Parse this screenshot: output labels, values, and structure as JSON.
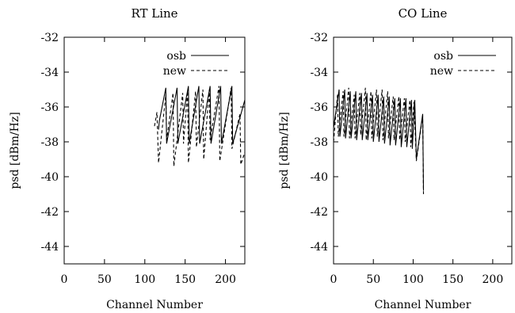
{
  "chart_data": [
    {
      "type": "line",
      "title": "RT Line",
      "xlabel": "Channel Number",
      "ylabel": "psd [dBm/Hz]",
      "xlim": [
        0,
        224
      ],
      "ylim": [
        -45,
        -32
      ],
      "xticks": [
        0,
        50,
        100,
        150,
        200
      ],
      "yticks": [
        -32,
        -34,
        -36,
        -38,
        -40,
        -42,
        -44
      ],
      "grid": false,
      "legend": "top-right",
      "series": [
        {
          "name": "osb",
          "style": "solid",
          "color": "#000000",
          "points": [
            [
              117,
              -37.3
            ],
            [
              118,
              -36.8
            ],
            [
              126,
              -34.9
            ],
            [
              127,
              -38.1
            ],
            [
              140,
              -34.9
            ],
            [
              141,
              -38.1
            ],
            [
              154,
              -34.8
            ],
            [
              155,
              -38.1
            ],
            [
              167,
              -34.8
            ],
            [
              168,
              -38.1
            ],
            [
              181,
              -34.8
            ],
            [
              182,
              -38.1
            ],
            [
              194,
              -34.8
            ],
            [
              195,
              -38.1
            ],
            [
              208,
              -34.8
            ],
            [
              209,
              -38.1
            ],
            [
              224,
              -35.6
            ]
          ]
        },
        {
          "name": "new",
          "style": "dashed",
          "color": "#000000",
          "points": [
            [
              112,
              -37.1
            ],
            [
              115,
              -36.3
            ],
            [
              117,
              -39.2
            ],
            [
              126,
              -35.3
            ],
            [
              127,
              -37.9
            ],
            [
              135,
              -35.2
            ],
            [
              136,
              -39.4
            ],
            [
              147,
              -35.2
            ],
            [
              148,
              -38.1
            ],
            [
              153,
              -35.1
            ],
            [
              154,
              -39.2
            ],
            [
              163,
              -35.1
            ],
            [
              164,
              -38.3
            ],
            [
              172,
              -35.0
            ],
            [
              173,
              -39.0
            ],
            [
              180,
              -35.0
            ],
            [
              181,
              -37.9
            ],
            [
              192,
              -34.8
            ],
            [
              193,
              -39.1
            ],
            [
              207,
              -34.9
            ],
            [
              208,
              -38.4
            ],
            [
              218,
              -36.4
            ],
            [
              219,
              -39.3
            ],
            [
              224,
              -38.6
            ]
          ]
        }
      ]
    },
    {
      "type": "line",
      "title": "CO Line",
      "xlabel": "Channel Number",
      "ylabel": "psd [dBm/Hz]",
      "xlim": [
        0,
        224
      ],
      "ylim": [
        -45,
        -32
      ],
      "xticks": [
        0,
        50,
        100,
        150,
        200
      ],
      "yticks": [
        -32,
        -34,
        -36,
        -38,
        -40,
        -42,
        -44
      ],
      "grid": false,
      "legend": "top-right",
      "series": [
        {
          "name": "osb",
          "style": "solid",
          "color": "#000000",
          "points": [
            [
              0,
              -37.2
            ],
            [
              7,
              -35.0
            ],
            [
              8,
              -37.7
            ],
            [
              14,
              -35.0
            ],
            [
              15,
              -37.8
            ],
            [
              21,
              -35.1
            ],
            [
              22,
              -37.8
            ],
            [
              28,
              -35.1
            ],
            [
              29,
              -37.9
            ],
            [
              35,
              -35.2
            ],
            [
              36,
              -37.9
            ],
            [
              42,
              -35.2
            ],
            [
              43,
              -37.9
            ],
            [
              49,
              -35.3
            ],
            [
              50,
              -38.0
            ],
            [
              56,
              -35.3
            ],
            [
              57,
              -38.0
            ],
            [
              63,
              -35.4
            ],
            [
              64,
              -38.1
            ],
            [
              70,
              -35.4
            ],
            [
              71,
              -38.2
            ],
            [
              77,
              -35.5
            ],
            [
              78,
              -38.2
            ],
            [
              84,
              -35.5
            ],
            [
              85,
              -38.3
            ],
            [
              91,
              -35.5
            ],
            [
              92,
              -38.3
            ],
            [
              98,
              -35.6
            ],
            [
              99,
              -38.4
            ],
            [
              102,
              -35.6
            ],
            [
              104,
              -39.0
            ],
            [
              112,
              -36.4
            ],
            [
              113,
              -40.8
            ]
          ]
        },
        {
          "name": "new",
          "style": "dashed",
          "color": "#000000",
          "points": [
            [
              0,
              -38.0
            ],
            [
              5,
              -35.3
            ],
            [
              6,
              -37.7
            ],
            [
              12,
              -35.1
            ],
            [
              13,
              -37.7
            ],
            [
              19,
              -34.9
            ],
            [
              20,
              -37.8
            ],
            [
              26,
              -35.3
            ],
            [
              27,
              -37.8
            ],
            [
              33,
              -35.2
            ],
            [
              34,
              -37.6
            ],
            [
              40,
              -34.9
            ],
            [
              41,
              -37.9
            ],
            [
              47,
              -35.1
            ],
            [
              48,
              -37.8
            ],
            [
              54,
              -35.0
            ],
            [
              55,
              -37.7
            ],
            [
              61,
              -35.0
            ],
            [
              62,
              -37.9
            ],
            [
              68,
              -35.1
            ],
            [
              69,
              -37.8
            ],
            [
              75,
              -35.4
            ],
            [
              76,
              -37.9
            ],
            [
              82,
              -35.4
            ],
            [
              83,
              -37.9
            ],
            [
              89,
              -35.5
            ],
            [
              90,
              -38.0
            ],
            [
              96,
              -35.6
            ],
            [
              97,
              -38.3
            ],
            [
              101,
              -35.7
            ],
            [
              104,
              -39.1
            ],
            [
              112,
              -36.5
            ],
            [
              113,
              -41.0
            ]
          ]
        }
      ]
    }
  ]
}
